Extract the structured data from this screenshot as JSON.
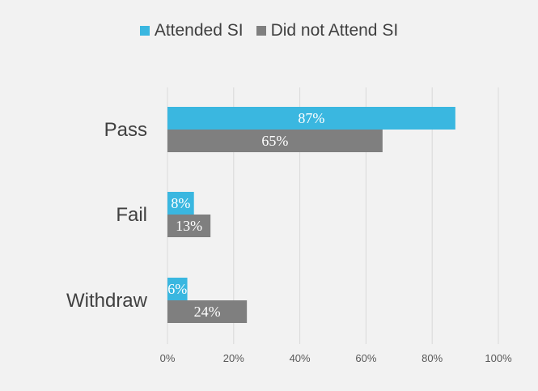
{
  "chart_data": {
    "type": "bar",
    "orientation": "horizontal",
    "categories": [
      "Pass",
      "Fail",
      "Withdraw"
    ],
    "series": [
      {
        "name": "Attended SI",
        "values": [
          87,
          8,
          6
        ],
        "labels": [
          "87%",
          "8%",
          "6%"
        ],
        "color": "#3ab7e0"
      },
      {
        "name": "Did not Attend SI",
        "values": [
          65,
          13,
          24
        ],
        "labels": [
          "65%",
          "13%",
          "24%"
        ],
        "color": "#7f7f7f"
      }
    ],
    "xticks": [
      "0%",
      "20%",
      "40%",
      "60%",
      "80%",
      "100%"
    ],
    "xlim": [
      0,
      100
    ],
    "grid": true,
    "legend_position": "top"
  }
}
